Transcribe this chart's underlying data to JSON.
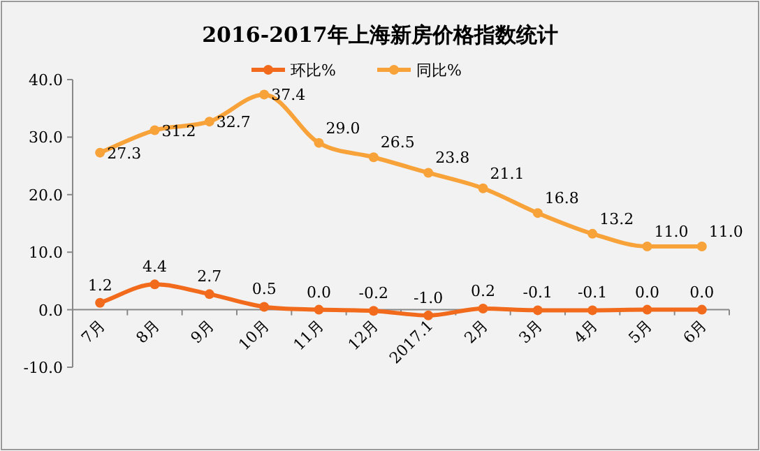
{
  "chart_data": {
    "type": "line",
    "title": "2016-2017年上海新房价格指数统计",
    "categories": [
      "7月",
      "8月",
      "9月",
      "10月",
      "11月",
      "12月",
      "2017.1",
      "2月",
      "3月",
      "4月",
      "5月",
      "6月"
    ],
    "series": [
      {
        "name": "环比%",
        "color": "#f26b1d",
        "values": [
          1.2,
          4.4,
          2.7,
          0.5,
          0.0,
          -0.2,
          -1.0,
          0.2,
          -0.1,
          -0.1,
          0.0,
          0.0
        ],
        "value_labels": [
          "1.2",
          "4.4",
          "2.7",
          "0.5",
          "0.0",
          "-0.2",
          "-1.0",
          "0.2",
          "-0.1",
          "-0.1",
          "0.0",
          "0.0"
        ]
      },
      {
        "name": "同比%",
        "color": "#f8a23a",
        "values": [
          27.3,
          31.2,
          32.7,
          37.4,
          29.0,
          26.5,
          23.8,
          21.1,
          16.8,
          13.2,
          11.0,
          11.0
        ],
        "value_labels": [
          "27.3",
          "31.2",
          "32.7",
          "37.4",
          "29.0",
          "26.5",
          "23.8",
          "21.1",
          "16.8",
          "13.2",
          "11.0",
          "11.0"
        ]
      }
    ],
    "ylim": [
      -10,
      40
    ],
    "yticks": [
      {
        "value": -10,
        "label": "-10.0"
      },
      {
        "value": 0,
        "label": "0.0"
      },
      {
        "value": 10,
        "label": "10.0"
      },
      {
        "value": 20,
        "label": "20.0"
      },
      {
        "value": 30,
        "label": "30.0"
      },
      {
        "value": 40,
        "label": "40.0"
      }
    ],
    "grid": false,
    "legend": "top",
    "marker": "circle",
    "line_style": "solid"
  }
}
